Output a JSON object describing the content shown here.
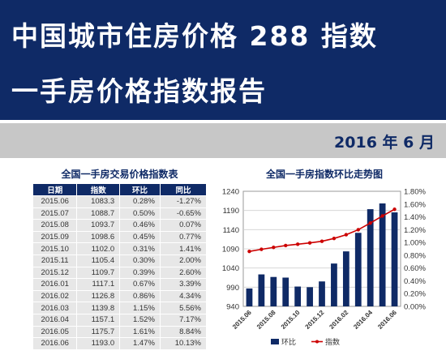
{
  "banner": {
    "title_line1": "中国城市住房价格 288 指数",
    "title_line2": "一手房价格指数报告",
    "date": "2016 年 6 月"
  },
  "colors": {
    "brand": "#0f2a66",
    "date_bar": "#c7c7c7",
    "table_row": "#e7e7e7",
    "line": "#cc0000"
  },
  "table": {
    "title": "全国一手房交易价格指数表",
    "headers": [
      "日期",
      "指数",
      "环比",
      "同比"
    ],
    "rows": [
      [
        "2015.06",
        "1083.3",
        "0.28%",
        "-1.27%"
      ],
      [
        "2015.07",
        "1088.7",
        "0.50%",
        "-0.65%"
      ],
      [
        "2015.08",
        "1093.7",
        "0.46%",
        "0.07%"
      ],
      [
        "2015.09",
        "1098.6",
        "0.45%",
        "0.77%"
      ],
      [
        "2015.10",
        "1102.0",
        "0.31%",
        "1.41%"
      ],
      [
        "2015.11",
        "1105.4",
        "0.30%",
        "2.00%"
      ],
      [
        "2015.12",
        "1109.7",
        "0.39%",
        "2.60%"
      ],
      [
        "2016.01",
        "1117.1",
        "0.67%",
        "3.39%"
      ],
      [
        "2016.02",
        "1126.8",
        "0.86%",
        "4.34%"
      ],
      [
        "2016.03",
        "1139.8",
        "1.15%",
        "5.56%"
      ],
      [
        "2016.04",
        "1157.1",
        "1.52%",
        "7.17%"
      ],
      [
        "2016.05",
        "1175.7",
        "1.61%",
        "8.84%"
      ],
      [
        "2016.06",
        "1193.0",
        "1.47%",
        "10.13%"
      ]
    ]
  },
  "chart_data": {
    "type": "bar",
    "title": "全国一手房指数环比走势图",
    "categories": [
      "2015.06",
      "2015.07",
      "2015.08",
      "2015.09",
      "2015.10",
      "2015.11",
      "2015.12",
      "2016.01",
      "2016.02",
      "2016.03",
      "2016.04",
      "2016.05",
      "2016.06"
    ],
    "x_tick_labels": [
      "2015.06",
      "2015.08",
      "2015.10",
      "2015.12",
      "2016.02",
      "2016.04",
      "2016.06"
    ],
    "series": [
      {
        "name": "环比",
        "type": "bar",
        "axis": "left",
        "values": [
          0.28,
          0.5,
          0.46,
          0.45,
          0.31,
          0.3,
          0.39,
          0.67,
          0.86,
          1.15,
          1.52,
          1.61,
          1.47
        ]
      },
      {
        "name": "指数",
        "type": "line",
        "axis": "left",
        "values": [
          1083.3,
          1088.7,
          1093.7,
          1098.6,
          1102.0,
          1105.4,
          1109.7,
          1117.1,
          1126.8,
          1139.8,
          1157.1,
          1175.7,
          1193.0
        ]
      }
    ],
    "ylim_left": [
      940,
      1240
    ],
    "yticks_left": [
      "1240",
      "1190",
      "1140",
      "1090",
      "1040",
      "990",
      "940"
    ],
    "ylim_right": [
      0,
      1.8
    ],
    "yticks_right": [
      "1.80%",
      "1.60%",
      "1.40%",
      "1.20%",
      "1.00%",
      "0.80%",
      "0.60%",
      "0.40%",
      "0.20%",
      "0.00%"
    ],
    "grid": true,
    "legend_position": "bottom"
  }
}
